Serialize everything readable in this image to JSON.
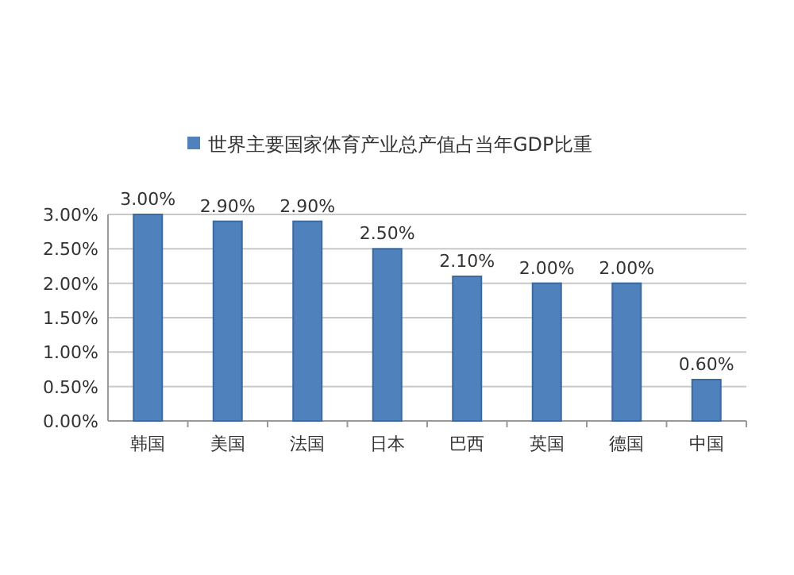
{
  "chart_data": {
    "type": "bar",
    "categories": [
      "韩国",
      "美国",
      "法国",
      "日本",
      "巴西",
      "英国",
      "德国",
      "中国"
    ],
    "series": [
      {
        "name": "世界主要国家体育产业总产值占当年GDP比重",
        "color": "#4f81bd",
        "values": [
          3.0,
          2.9,
          2.9,
          2.5,
          2.1,
          2.0,
          2.0,
          0.6
        ],
        "value_labels": [
          "3.00%",
          "2.90%",
          "2.90%",
          "2.50%",
          "2.10%",
          "2.00%",
          "2.00%",
          "0.60%"
        ]
      }
    ],
    "ylim": [
      0,
      3.0
    ],
    "yticks": [
      {
        "value": 0,
        "label": "0.00%"
      },
      {
        "value": 0.5,
        "label": "0.50%"
      },
      {
        "value": 1.0,
        "label": "1.00%"
      },
      {
        "value": 1.5,
        "label": "1.50%"
      },
      {
        "value": 2.0,
        "label": "2.00%"
      },
      {
        "value": 2.5,
        "label": "2.50%"
      },
      {
        "value": 3.0,
        "label": "3.00%"
      }
    ],
    "grid": "y",
    "legend": "top"
  }
}
